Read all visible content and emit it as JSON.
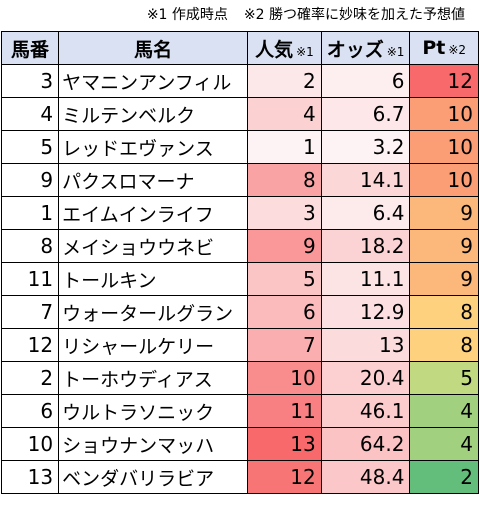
{
  "note": {
    "part1": "※1 作成時点",
    "part2": "※2 勝つ確率に妙味を加えた予想値"
  },
  "headers": {
    "no": "馬番",
    "name": "馬名",
    "pop": "人気",
    "pop_mark": "※1",
    "odds": "オッズ",
    "odds_mark": "※1",
    "pt": "Pt",
    "pt_mark": "※2"
  },
  "rows": [
    {
      "no": "3",
      "name": "ヤマニンアンフィル",
      "pop": "2",
      "odds": "6",
      "pt": "12"
    },
    {
      "no": "4",
      "name": "ミルテンベルク",
      "pop": "4",
      "odds": "6.7",
      "pt": "10"
    },
    {
      "no": "5",
      "name": "レッドエヴァンス",
      "pop": "1",
      "odds": "3.2",
      "pt": "10"
    },
    {
      "no": "9",
      "name": "パクスロマーナ",
      "pop": "8",
      "odds": "14.1",
      "pt": "10"
    },
    {
      "no": "1",
      "name": "エイムインライフ",
      "pop": "3",
      "odds": "6.4",
      "pt": "9"
    },
    {
      "no": "8",
      "name": "メイショウウネビ",
      "pop": "9",
      "odds": "18.2",
      "pt": "9"
    },
    {
      "no": "11",
      "name": "トールキン",
      "pop": "5",
      "odds": "11.1",
      "pt": "9"
    },
    {
      "no": "7",
      "name": "ウォータールグラン",
      "pop": "6",
      "odds": "12.9",
      "pt": "8"
    },
    {
      "no": "12",
      "name": "リシャールケリー",
      "pop": "7",
      "odds": "13",
      "pt": "8"
    },
    {
      "no": "2",
      "name": "トーホウディアス",
      "pop": "10",
      "odds": "20.4",
      "pt": "5"
    },
    {
      "no": "6",
      "name": "ウルトラソニック",
      "pop": "11",
      "odds": "46.1",
      "pt": "4"
    },
    {
      "no": "10",
      "name": "ショウナンマッハ",
      "pop": "13",
      "odds": "64.2",
      "pt": "4"
    },
    {
      "no": "13",
      "name": "ベンダバリラビア",
      "pop": "12",
      "odds": "48.4",
      "pt": "2"
    }
  ],
  "colors": {
    "header_bg": "#d9e1f2",
    "pop_low": "#fdf3f4",
    "pop_high": "#f8696b",
    "pt_high": "#f8696b",
    "pt_mid": "#ffeb84",
    "pt_low": "#63be7b"
  }
}
